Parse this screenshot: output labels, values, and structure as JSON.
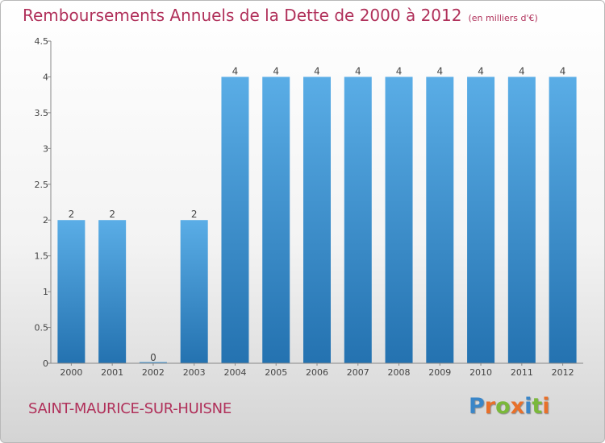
{
  "header": {
    "title": "Remboursements Annuels de la Dette de 2000 à 2012",
    "subtitle": "(en milliers d'€)"
  },
  "footer": {
    "city": "SAINT-MAURICE-SUR-HUISNE",
    "brand": "Proxiti",
    "brand_letters": [
      "P",
      "r",
      "o",
      "x",
      "i",
      "t",
      "i"
    ],
    "brand_colors": [
      "#3a86c8",
      "#e8702a",
      "#7ab83a",
      "#e8702a",
      "#3a86c8",
      "#7ab83a",
      "#e8702a"
    ]
  },
  "chart_data": {
    "type": "bar",
    "categories": [
      "2000",
      "2001",
      "2002",
      "2003",
      "2004",
      "2005",
      "2006",
      "2007",
      "2008",
      "2009",
      "2010",
      "2011",
      "2012"
    ],
    "values": [
      2,
      2,
      0,
      2,
      4,
      4,
      4,
      4,
      4,
      4,
      4,
      4,
      4
    ],
    "data_labels": [
      "2",
      "2",
      "0",
      "2",
      "4",
      "4",
      "4",
      "4",
      "4",
      "4",
      "4",
      "4",
      "4"
    ],
    "title": "Remboursements Annuels de la Dette de 2000 à 2012",
    "xlabel": "",
    "ylabel": "",
    "ylim": [
      0,
      4.5
    ],
    "yticks": [
      0,
      0.5,
      1,
      1.5,
      2,
      2.5,
      3,
      3.5,
      4,
      4.5
    ],
    "ytick_labels": [
      "0",
      "0.5",
      "1",
      "1.5",
      "2",
      "2.5",
      "3",
      "3.5",
      "4",
      "4.5"
    ],
    "grid": false,
    "bar_color_top": "#5aade6",
    "bar_color_bottom": "#2472b0"
  }
}
